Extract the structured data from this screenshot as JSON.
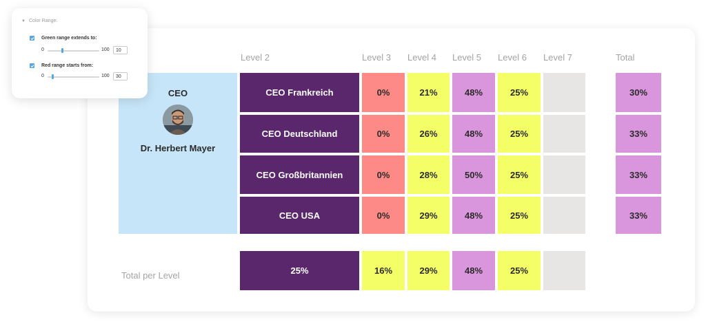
{
  "color_range_panel": {
    "title": "Color Range:",
    "green": {
      "label": "Green range extends to:",
      "checked": true,
      "min": "0",
      "max": "100",
      "value": "10"
    },
    "red": {
      "label": "Red range starts from:",
      "checked": true,
      "min": "0",
      "max": "100",
      "value": "30"
    }
  },
  "headers": {
    "level2": "Level 2",
    "level3": "Level 3",
    "level4": "Level 4",
    "level5": "Level 5",
    "level6": "Level 6",
    "level7": "Level 7",
    "total": "Total"
  },
  "ceo": {
    "title": "CEO",
    "name": "Dr. Herbert Mayer"
  },
  "rows": [
    {
      "name": "CEO Frankreich",
      "l3": "0%",
      "l4": "21%",
      "l5": "48%",
      "l6": "25%",
      "l7": "",
      "total": "30%"
    },
    {
      "name": "CEO Deutschland",
      "l3": "0%",
      "l4": "26%",
      "l5": "48%",
      "l6": "25%",
      "l7": "",
      "total": "33%"
    },
    {
      "name": "CEO Großbritannien",
      "l3": "0%",
      "l4": "28%",
      "l5": "50%",
      "l6": "25%",
      "l7": "",
      "total": "33%"
    },
    {
      "name": "CEO USA",
      "l3": "0%",
      "l4": "29%",
      "l5": "48%",
      "l6": "25%",
      "l7": "",
      "total": "33%"
    }
  ],
  "total_per_level": {
    "label": "Total per Level",
    "l2": "25%",
    "l3": "16%",
    "l4": "29%",
    "l5": "48%",
    "l6": "25%",
    "l7": ""
  },
  "colors": {
    "purple": "#5a276d",
    "red": "#fd8a86",
    "yellow": "#f4ff68",
    "pink": "#d996dc",
    "gray": "#e8e6e4",
    "ceo_bg": "#c6e5f8",
    "accent": "#5aa6e3"
  }
}
